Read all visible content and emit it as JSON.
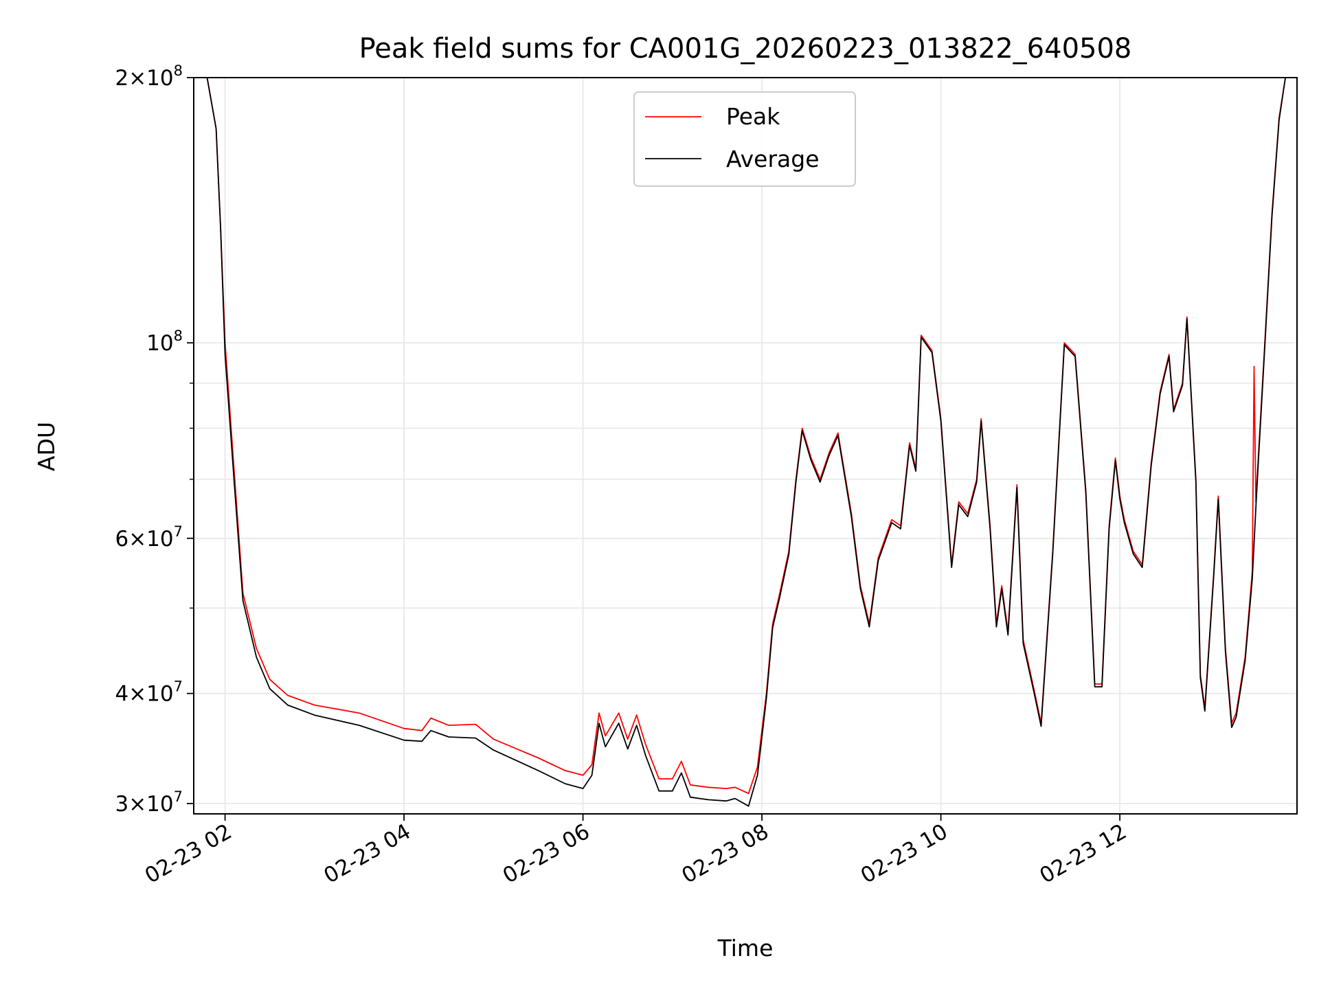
{
  "chart_data": {
    "type": "line",
    "title": "Peak field sums for CA001G_20260223_013822_640508",
    "xlabel": "Time",
    "ylabel": "ADU",
    "yscale": "log",
    "xlim": [
      1.65,
      13.98
    ],
    "ylim": [
      29200000,
      200000000
    ],
    "grid": true,
    "legend_location": "upper center",
    "x_ticks": [
      {
        "value": 2,
        "label": "02-23 02"
      },
      {
        "value": 4,
        "label": "02-23 04"
      },
      {
        "value": 6,
        "label": "02-23 06"
      },
      {
        "value": 8,
        "label": "02-23 08"
      },
      {
        "value": 10,
        "label": "02-23 10"
      },
      {
        "value": 12,
        "label": "02-23 12"
      }
    ],
    "y_major_ticks": [
      {
        "value": 30000000,
        "mantissa": "3",
        "exponent": "7"
      },
      {
        "value": 40000000,
        "mantissa": "4",
        "exponent": "7"
      },
      {
        "value": 60000000,
        "mantissa": "6",
        "exponent": "7"
      },
      {
        "value": 100000000,
        "mantissa": "",
        "exponent": "8"
      },
      {
        "value": 200000000,
        "mantissa": "2",
        "exponent": "8"
      }
    ],
    "y_minor_grid": [
      50000000,
      70000000,
      80000000,
      90000000
    ],
    "x_unit_note": "x values are hours on 2026-02-23",
    "series": [
      {
        "name": "Peak",
        "color": "#ff0000",
        "points": [
          [
            1.65,
            200000000
          ],
          [
            1.8,
            200000000
          ],
          [
            1.9,
            175000000
          ],
          [
            1.95,
            135000000
          ],
          [
            2.0,
            100000000
          ],
          [
            2.1,
            72000000
          ],
          [
            2.2,
            52000000
          ],
          [
            2.35,
            45000000
          ],
          [
            2.5,
            41500000
          ],
          [
            2.7,
            39800000
          ],
          [
            3.0,
            38800000
          ],
          [
            3.5,
            38000000
          ],
          [
            4.0,
            36500000
          ],
          [
            4.2,
            36300000
          ],
          [
            4.3,
            37500000
          ],
          [
            4.5,
            36800000
          ],
          [
            4.8,
            36900000
          ],
          [
            5.0,
            35500000
          ],
          [
            5.5,
            33800000
          ],
          [
            5.8,
            32700000
          ],
          [
            6.0,
            32300000
          ],
          [
            6.1,
            33200000
          ],
          [
            6.18,
            38000000
          ],
          [
            6.25,
            35800000
          ],
          [
            6.4,
            38000000
          ],
          [
            6.5,
            35500000
          ],
          [
            6.6,
            37800000
          ],
          [
            6.7,
            35000000
          ],
          [
            6.85,
            32000000
          ],
          [
            7.0,
            32000000
          ],
          [
            7.1,
            33500000
          ],
          [
            7.2,
            31500000
          ],
          [
            7.4,
            31300000
          ],
          [
            7.6,
            31200000
          ],
          [
            7.7,
            31300000
          ],
          [
            7.85,
            30800000
          ],
          [
            7.95,
            33000000
          ],
          [
            8.05,
            40000000
          ],
          [
            8.12,
            48000000
          ],
          [
            8.2,
            52000000
          ],
          [
            8.3,
            58000000
          ],
          [
            8.38,
            70000000
          ],
          [
            8.45,
            80000000
          ],
          [
            8.55,
            74000000
          ],
          [
            8.65,
            70000000
          ],
          [
            8.75,
            75000000
          ],
          [
            8.85,
            79000000
          ],
          [
            9.0,
            64000000
          ],
          [
            9.1,
            53000000
          ],
          [
            9.2,
            48000000
          ],
          [
            9.3,
            57000000
          ],
          [
            9.45,
            63000000
          ],
          [
            9.55,
            62000000
          ],
          [
            9.65,
            77000000
          ],
          [
            9.72,
            72000000
          ],
          [
            9.78,
            102000000
          ],
          [
            9.9,
            98000000
          ],
          [
            10.0,
            82000000
          ],
          [
            10.12,
            56000000
          ],
          [
            10.2,
            66000000
          ],
          [
            10.3,
            64000000
          ],
          [
            10.4,
            70000000
          ],
          [
            10.45,
            82000000
          ],
          [
            10.55,
            62000000
          ],
          [
            10.62,
            48000000
          ],
          [
            10.68,
            53000000
          ],
          [
            10.75,
            47000000
          ],
          [
            10.85,
            69000000
          ],
          [
            10.92,
            46000000
          ],
          [
            11.05,
            40000000
          ],
          [
            11.12,
            37000000
          ],
          [
            11.25,
            58000000
          ],
          [
            11.38,
            100000000
          ],
          [
            11.5,
            97000000
          ],
          [
            11.62,
            68000000
          ],
          [
            11.72,
            41000000
          ],
          [
            11.8,
            41000000
          ],
          [
            11.88,
            62000000
          ],
          [
            11.95,
            74000000
          ],
          [
            12.0,
            67000000
          ],
          [
            12.05,
            63000000
          ],
          [
            12.15,
            58000000
          ],
          [
            12.25,
            56000000
          ],
          [
            12.35,
            73000000
          ],
          [
            12.45,
            88000000
          ],
          [
            12.55,
            97000000
          ],
          [
            12.6,
            84000000
          ],
          [
            12.7,
            90000000
          ],
          [
            12.75,
            107000000
          ],
          [
            12.85,
            70000000
          ],
          [
            12.9,
            42000000
          ],
          [
            12.95,
            38500000
          ],
          [
            13.05,
            55000000
          ],
          [
            13.1,
            67000000
          ],
          [
            13.18,
            45000000
          ],
          [
            13.25,
            37000000
          ],
          [
            13.3,
            38000000
          ],
          [
            13.4,
            44000000
          ],
          [
            13.48,
            55000000
          ],
          [
            13.5,
            94000000
          ],
          [
            13.52,
            66000000
          ],
          [
            13.55,
            75000000
          ],
          [
            13.62,
            100000000
          ],
          [
            13.7,
            140000000
          ],
          [
            13.78,
            180000000
          ],
          [
            13.85,
            200000000
          ],
          [
            13.98,
            200000000
          ]
        ]
      },
      {
        "name": "Average",
        "color": "#000000",
        "points": [
          [
            1.65,
            200000000
          ],
          [
            1.8,
            200000000
          ],
          [
            1.9,
            175000000
          ],
          [
            1.95,
            135000000
          ],
          [
            2.0,
            97000000
          ],
          [
            2.1,
            70000000
          ],
          [
            2.2,
            51000000
          ],
          [
            2.35,
            44000000
          ],
          [
            2.5,
            40500000
          ],
          [
            2.7,
            38800000
          ],
          [
            3.0,
            37800000
          ],
          [
            3.5,
            36800000
          ],
          [
            4.0,
            35400000
          ],
          [
            4.2,
            35300000
          ],
          [
            4.3,
            36300000
          ],
          [
            4.5,
            35700000
          ],
          [
            4.8,
            35600000
          ],
          [
            5.0,
            34500000
          ],
          [
            5.5,
            32700000
          ],
          [
            5.8,
            31600000
          ],
          [
            6.0,
            31200000
          ],
          [
            6.1,
            32300000
          ],
          [
            6.18,
            37000000
          ],
          [
            6.25,
            34800000
          ],
          [
            6.4,
            37000000
          ],
          [
            6.5,
            34600000
          ],
          [
            6.6,
            36800000
          ],
          [
            6.7,
            34000000
          ],
          [
            6.85,
            31000000
          ],
          [
            7.0,
            31000000
          ],
          [
            7.1,
            32500000
          ],
          [
            7.2,
            30500000
          ],
          [
            7.4,
            30300000
          ],
          [
            7.6,
            30200000
          ],
          [
            7.7,
            30400000
          ],
          [
            7.85,
            29800000
          ],
          [
            7.95,
            32300000
          ],
          [
            8.05,
            39500000
          ],
          [
            8.12,
            47500000
          ],
          [
            8.2,
            51500000
          ],
          [
            8.3,
            57500000
          ],
          [
            8.38,
            69500000
          ],
          [
            8.45,
            79500000
          ],
          [
            8.55,
            73500000
          ],
          [
            8.65,
            69500000
          ],
          [
            8.75,
            74500000
          ],
          [
            8.85,
            78500000
          ],
          [
            9.0,
            63500000
          ],
          [
            9.1,
            52600000
          ],
          [
            9.2,
            47600000
          ],
          [
            9.3,
            56600000
          ],
          [
            9.45,
            62500000
          ],
          [
            9.55,
            61500000
          ],
          [
            9.65,
            76500000
          ],
          [
            9.72,
            71500000
          ],
          [
            9.78,
            101500000
          ],
          [
            9.9,
            97500000
          ],
          [
            10.0,
            81500000
          ],
          [
            10.12,
            55600000
          ],
          [
            10.2,
            65500000
          ],
          [
            10.3,
            63500000
          ],
          [
            10.4,
            69500000
          ],
          [
            10.45,
            81500000
          ],
          [
            10.55,
            61500000
          ],
          [
            10.62,
            47600000
          ],
          [
            10.68,
            52600000
          ],
          [
            10.75,
            46600000
          ],
          [
            10.85,
            68500000
          ],
          [
            10.92,
            45600000
          ],
          [
            11.05,
            39700000
          ],
          [
            11.12,
            36700000
          ],
          [
            11.25,
            57600000
          ],
          [
            11.38,
            99500000
          ],
          [
            11.5,
            96500000
          ],
          [
            11.62,
            67500000
          ],
          [
            11.72,
            40700000
          ],
          [
            11.8,
            40700000
          ],
          [
            11.88,
            61500000
          ],
          [
            11.95,
            73500000
          ],
          [
            12.0,
            66500000
          ],
          [
            12.05,
            62500000
          ],
          [
            12.15,
            57600000
          ],
          [
            12.25,
            55600000
          ],
          [
            12.35,
            72500000
          ],
          [
            12.45,
            87500000
          ],
          [
            12.55,
            96500000
          ],
          [
            12.6,
            83500000
          ],
          [
            12.7,
            89500000
          ],
          [
            12.75,
            106500000
          ],
          [
            12.85,
            69500000
          ],
          [
            12.9,
            41700000
          ],
          [
            12.95,
            38200000
          ],
          [
            13.05,
            54600000
          ],
          [
            13.1,
            66500000
          ],
          [
            13.18,
            44600000
          ],
          [
            13.25,
            36600000
          ],
          [
            13.3,
            37600000
          ],
          [
            13.4,
            43600000
          ],
          [
            13.48,
            54000000
          ],
          [
            13.52,
            65000000
          ],
          [
            13.55,
            74000000
          ],
          [
            13.62,
            99000000
          ],
          [
            13.7,
            139000000
          ],
          [
            13.78,
            179000000
          ],
          [
            13.85,
            200000000
          ],
          [
            13.98,
            200000000
          ]
        ]
      }
    ]
  }
}
